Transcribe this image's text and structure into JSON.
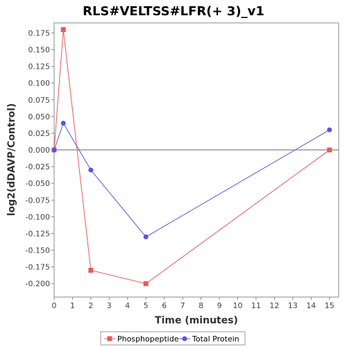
{
  "chart_data": {
    "type": "line",
    "title": "RLS#VELTSS#LFR(+ 3)_v1",
    "xlabel": "Time (minutes)",
    "ylabel": "log2(dDAVP/Control)",
    "xlim": [
      0,
      15.5
    ],
    "ylim": [
      -0.22,
      0.19
    ],
    "xticks": [
      0,
      1,
      2,
      3,
      4,
      5,
      6,
      7,
      8,
      9,
      10,
      11,
      12,
      13,
      14,
      15
    ],
    "yticks": [
      0.175,
      0.15,
      0.125,
      0.1,
      0.075,
      0.05,
      0.025,
      0.0,
      -0.025,
      -0.05,
      -0.075,
      -0.1,
      -0.125,
      -0.15,
      -0.175,
      -0.2
    ],
    "ytick_labels": [
      "0.175",
      "0.150",
      "0.125",
      "0.100",
      "0.075",
      "0.050",
      "0.025",
      "0.000",
      "-0.025",
      "-0.050",
      "-0.075",
      "-0.100",
      "-0.125",
      "-0.150",
      "-0.175",
      "-0.200"
    ],
    "grid": false,
    "zero_line": true,
    "legend_position": "bottom",
    "series": [
      {
        "name": "Phosphopeptide",
        "color": "#e8585a",
        "marker": "square",
        "x": [
          0,
          0.5,
          2,
          5,
          15
        ],
        "y": [
          0.0,
          0.18,
          -0.18,
          -0.2,
          0.0
        ]
      },
      {
        "name": "Total Protein",
        "color": "#5555e8",
        "marker": "circle",
        "x": [
          0,
          0.5,
          2,
          5,
          15
        ],
        "y": [
          0.0,
          0.04,
          -0.03,
          -0.13,
          0.03
        ]
      }
    ]
  }
}
